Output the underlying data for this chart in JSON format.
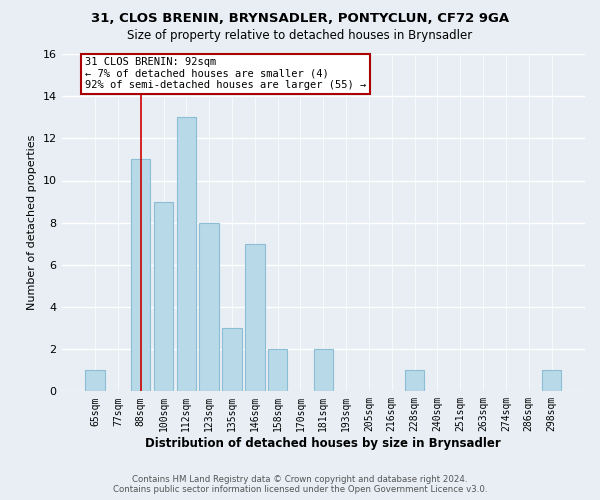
{
  "title1": "31, CLOS BRENIN, BRYNSADLER, PONTYCLUN, CF72 9GA",
  "title2": "Size of property relative to detached houses in Brynsadler",
  "xlabel": "Distribution of detached houses by size in Brynsadler",
  "ylabel": "Number of detached properties",
  "bar_labels": [
    "65sqm",
    "77sqm",
    "88sqm",
    "100sqm",
    "112sqm",
    "123sqm",
    "135sqm",
    "146sqm",
    "158sqm",
    "170sqm",
    "181sqm",
    "193sqm",
    "205sqm",
    "216sqm",
    "228sqm",
    "240sqm",
    "251sqm",
    "263sqm",
    "274sqm",
    "286sqm",
    "298sqm"
  ],
  "bar_values": [
    1,
    0,
    11,
    9,
    13,
    8,
    3,
    7,
    2,
    0,
    2,
    0,
    0,
    0,
    1,
    0,
    0,
    0,
    0,
    0,
    1
  ],
  "bar_color": "#b8d9e8",
  "bar_edge_color": "#8bbdd4",
  "highlight_bar_index": 2,
  "highlight_line_color": "#cc0000",
  "annotation_title": "31 CLOS BRENIN: 92sqm",
  "annotation_line1": "← 7% of detached houses are smaller (4)",
  "annotation_line2": "92% of semi-detached houses are larger (55) →",
  "annotation_box_color": "#ffffff",
  "annotation_box_edge": "#aa0000",
  "ylim": [
    0,
    16
  ],
  "yticks": [
    0,
    2,
    4,
    6,
    8,
    10,
    12,
    14,
    16
  ],
  "footer1": "Contains HM Land Registry data © Crown copyright and database right 2024.",
  "footer2": "Contains public sector information licensed under the Open Government Licence v3.0.",
  "background_color": "#e8eef4",
  "grid_color": "#ffffff"
}
